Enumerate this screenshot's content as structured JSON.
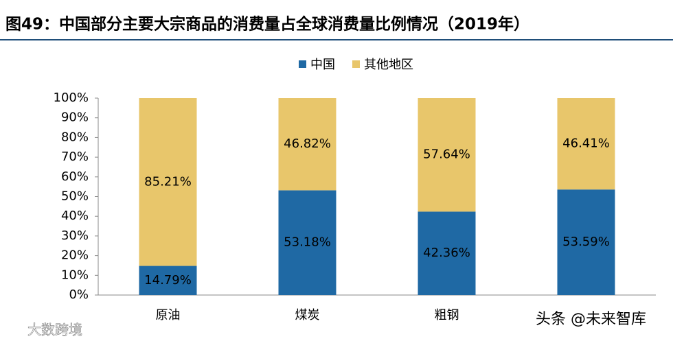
{
  "chart_data": {
    "type": "stacked_bar",
    "title": "图49：中国部分主要大宗商品的消费量占全球消费量比例情况（2019年）",
    "categories": [
      "原油",
      "煤炭",
      "粗钢",
      null
    ],
    "series": [
      {
        "name": "中国",
        "color": "#1f69a4",
        "values": [
          14.79,
          53.18,
          42.36,
          53.59
        ],
        "value_labels": [
          "14.79%",
          "53.18%",
          "42.36%",
          "53.59%"
        ]
      },
      {
        "name": "其他地区",
        "color": "#e8c66b",
        "values": [
          85.21,
          46.82,
          57.64,
          46.41
        ],
        "value_labels": [
          "85.21%",
          "46.82%",
          "57.64%",
          "46.41%"
        ]
      }
    ],
    "ylim": [
      0,
      100
    ],
    "yticks": [
      {
        "value": 0,
        "label": "0%"
      },
      {
        "value": 10,
        "label": "10%"
      },
      {
        "value": 20,
        "label": "20%"
      },
      {
        "value": 30,
        "label": "30%"
      },
      {
        "value": 40,
        "label": "40%"
      },
      {
        "value": 50,
        "label": "50%"
      },
      {
        "value": 60,
        "label": "60%"
      },
      {
        "value": 70,
        "label": "70%"
      },
      {
        "value": 80,
        "label": "80%"
      },
      {
        "value": 90,
        "label": "90%"
      },
      {
        "value": 100,
        "label": "100%"
      }
    ],
    "legend": "top",
    "watermarks": [
      "大数跨境",
      "头条 @未来智库"
    ]
  }
}
